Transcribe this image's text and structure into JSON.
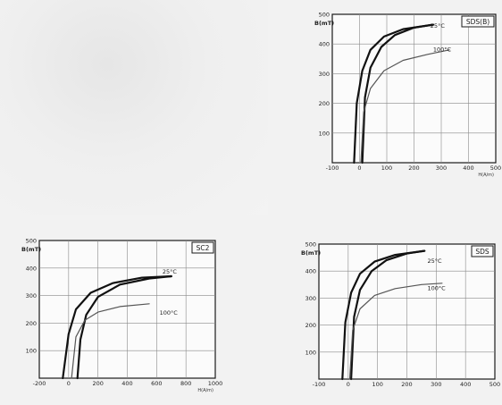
{
  "chart_data": [
    {
      "type": "line",
      "tag": "SDS(B)",
      "ylabel": "B(mT)",
      "xlabel": "H(A/m)",
      "xlim": [
        -100,
        500
      ],
      "ylim": [
        0,
        500
      ],
      "xticks": [
        -100,
        0,
        100,
        200,
        300,
        400,
        500
      ],
      "yticks": [
        0,
        100,
        200,
        300,
        400,
        500
      ],
      "xtick_labels": [
        "-100",
        "0",
        "100",
        "200",
        "300",
        "400",
        "500"
      ],
      "ytick_labels": [
        "",
        "100",
        "200",
        "300",
        "400",
        "500"
      ],
      "annotations": [
        {
          "text": "25°C",
          "x": 260,
          "y": 455
        },
        {
          "text": "100°C",
          "x": 270,
          "y": 375
        }
      ],
      "series": [
        {
          "color": "#111111",
          "width": 2.2,
          "x": [
            10,
            20,
            40,
            80,
            130,
            200,
            270
          ],
          "y": [
            0,
            220,
            320,
            390,
            430,
            455,
            465
          ]
        },
        {
          "color": "#111111",
          "width": 2.2,
          "x": [
            -20,
            -10,
            10,
            40,
            90,
            160,
            270
          ],
          "y": [
            0,
            200,
            310,
            380,
            425,
            450,
            465
          ]
        },
        {
          "color": "#555555",
          "width": 1.2,
          "x": [
            5,
            15,
            40,
            90,
            160,
            250,
            330
          ],
          "y": [
            0,
            170,
            250,
            310,
            345,
            365,
            380
          ]
        }
      ]
    },
    {
      "type": "line",
      "tag": "SC2",
      "ylabel": "B(mT)",
      "xlabel": "H(A/m)",
      "xlim": [
        -200,
        1000
      ],
      "ylim": [
        0,
        500
      ],
      "xticks": [
        -200,
        0,
        200,
        400,
        600,
        800,
        1000
      ],
      "yticks": [
        0,
        100,
        200,
        300,
        400,
        500
      ],
      "xtick_labels": [
        "-200",
        "0",
        "200",
        "400",
        "600",
        "800",
        "1000"
      ],
      "ytick_labels": [
        "",
        "100",
        "200",
        "300",
        "400",
        "500"
      ],
      "annotations": [
        {
          "text": "25°C",
          "x": 640,
          "y": 380
        },
        {
          "text": "100°C",
          "x": 620,
          "y": 230
        }
      ],
      "series": [
        {
          "color": "#111111",
          "width": 2.2,
          "x": [
            -40,
            0,
            50,
            150,
            300,
            500,
            700
          ],
          "y": [
            0,
            160,
            250,
            310,
            345,
            365,
            370
          ]
        },
        {
          "color": "#111111",
          "width": 2.2,
          "x": [
            60,
            80,
            120,
            200,
            350,
            550,
            700
          ],
          "y": [
            0,
            140,
            230,
            295,
            340,
            362,
            370
          ]
        },
        {
          "color": "#555555",
          "width": 1.2,
          "x": [
            20,
            50,
            110,
            200,
            350,
            550
          ],
          "y": [
            0,
            150,
            210,
            240,
            260,
            270
          ]
        }
      ]
    },
    {
      "type": "line",
      "tag": "SDS",
      "ylabel": "B(mT)",
      "xlabel": "",
      "xlim": [
        -100,
        500
      ],
      "ylim": [
        0,
        500
      ],
      "xticks": [
        -100,
        0,
        100,
        200,
        300,
        400,
        500
      ],
      "yticks": [
        0,
        100,
        200,
        300,
        400,
        500
      ],
      "xtick_labels": [
        "-100",
        "0",
        "100",
        "200",
        "300",
        "400",
        "500"
      ],
      "ytick_labels": [
        "",
        "100",
        "200",
        "300",
        "400",
        "500"
      ],
      "annotations": [
        {
          "text": "25°C",
          "x": 270,
          "y": 430
        },
        {
          "text": "100°C",
          "x": 270,
          "y": 330
        }
      ],
      "series": [
        {
          "color": "#111111",
          "width": 2.2,
          "x": [
            10,
            20,
            40,
            80,
            130,
            200,
            260
          ],
          "y": [
            0,
            230,
            330,
            400,
            440,
            465,
            475
          ]
        },
        {
          "color": "#111111",
          "width": 2.2,
          "x": [
            -20,
            -10,
            10,
            40,
            90,
            160,
            260
          ],
          "y": [
            0,
            210,
            320,
            390,
            435,
            460,
            475
          ]
        },
        {
          "color": "#555555",
          "width": 1.2,
          "x": [
            5,
            15,
            40,
            90,
            160,
            250,
            320
          ],
          "y": [
            0,
            180,
            260,
            310,
            335,
            350,
            355
          ]
        }
      ]
    }
  ]
}
